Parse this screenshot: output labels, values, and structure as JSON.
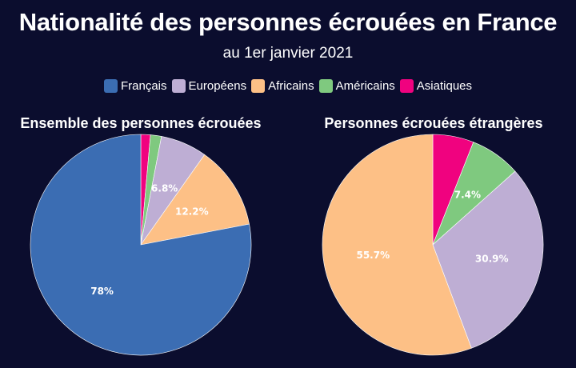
{
  "title": "Nationalité des personnes écrouées en France",
  "subtitle": "au 1er janvier 2021",
  "legend": [
    {
      "label": "Français",
      "color": "#3b6db3"
    },
    {
      "label": "Européens",
      "color": "#beaed4"
    },
    {
      "label": "Africains",
      "color": "#fdc086"
    },
    {
      "label": "Américains",
      "color": "#7fc97f"
    },
    {
      "label": "Asiatiques",
      "color": "#f0027f"
    }
  ],
  "chart_data": [
    {
      "type": "pie",
      "title": "Ensemble des personnes écrouées",
      "categories": [
        "Français",
        "Européens",
        "Africains",
        "Américains",
        "Asiatiques"
      ],
      "values": [
        78,
        6.8,
        12.2,
        1.6,
        1.4
      ],
      "labels": [
        "78%",
        "6.8%",
        "12.2%",
        "",
        ""
      ],
      "start": "top, clockwise, Asiatiques first"
    },
    {
      "type": "pie",
      "title": "Personnes écrouées étrangères",
      "categories": [
        "Européens",
        "Africains",
        "Américains",
        "Asiatiques"
      ],
      "values": [
        30.9,
        55.7,
        7.4,
        6.0
      ],
      "labels": [
        "30.9%",
        "55.7%",
        "7.4%",
        ""
      ],
      "start": "top, clockwise, Américains first"
    }
  ]
}
